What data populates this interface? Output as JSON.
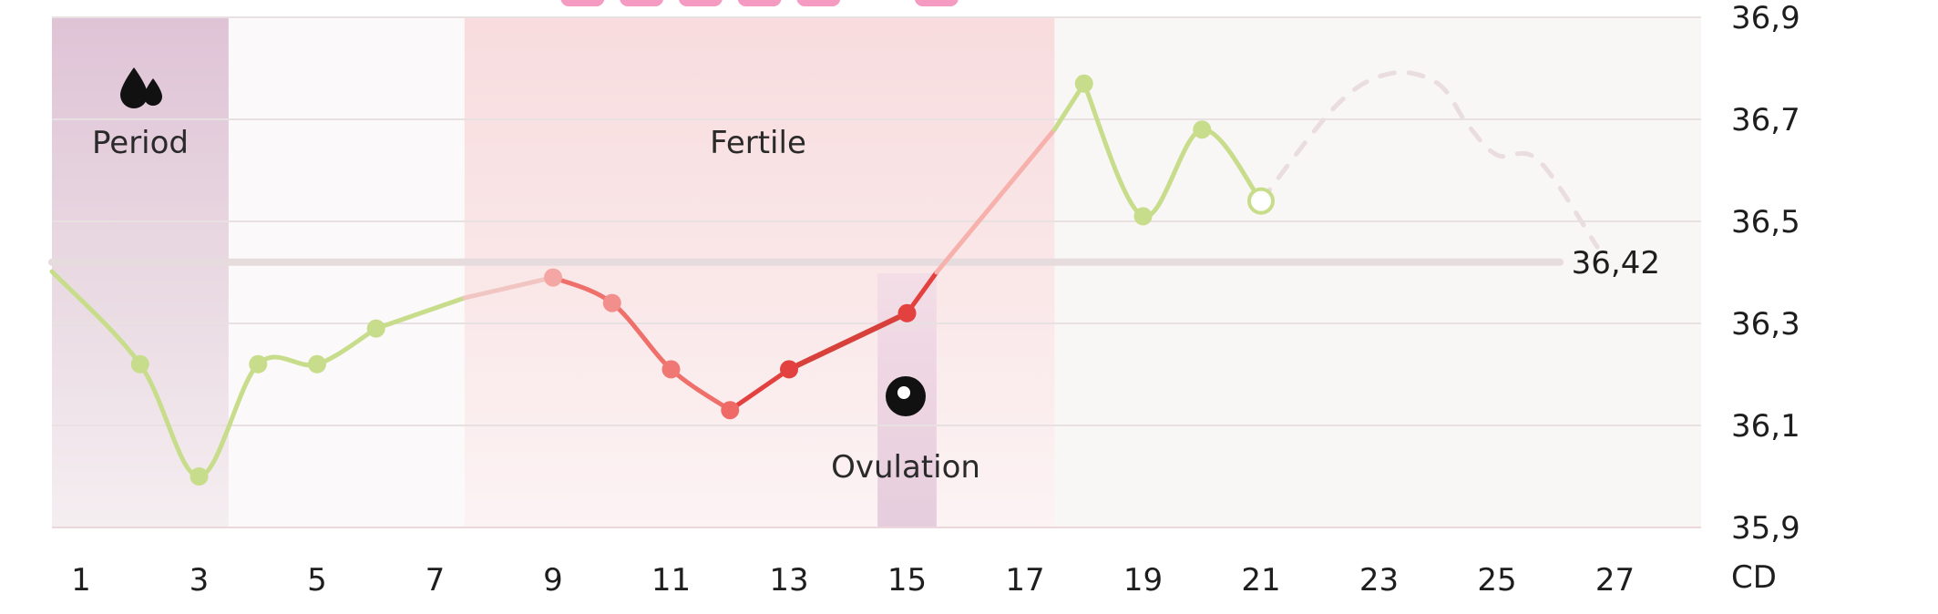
{
  "chart_data": {
    "type": "line",
    "x_unit_label": "CD",
    "xlim": [
      1,
      28
    ],
    "ylim": [
      35.9,
      36.9
    ],
    "x_ticks": [
      "1",
      "3",
      "5",
      "7",
      "9",
      "11",
      "13",
      "15",
      "17",
      "19",
      "21",
      "23",
      "25",
      "27"
    ],
    "y_ticks": [
      "36,9",
      "36,7",
      "36,5",
      "36,3",
      "36,1",
      "35,9"
    ],
    "series": [
      {
        "kind": "measured",
        "points": [
          {
            "x": 2,
            "y": 36.22
          },
          {
            "x": 3,
            "y": 36.0
          },
          {
            "x": 4,
            "y": 36.22
          },
          {
            "x": 5,
            "y": 36.22
          },
          {
            "x": 6,
            "y": 36.29
          },
          {
            "x": 9,
            "y": 36.39
          },
          {
            "x": 10,
            "y": 36.34
          },
          {
            "x": 11,
            "y": 36.21
          },
          {
            "x": 12,
            "y": 36.13
          },
          {
            "x": 13,
            "y": 36.21
          },
          {
            "x": 15,
            "y": 36.32
          },
          {
            "x": 18,
            "y": 36.77
          },
          {
            "x": 19,
            "y": 36.51
          },
          {
            "x": 20,
            "y": 36.68
          },
          {
            "x": 21,
            "y": 36.54
          }
        ]
      },
      {
        "kind": "predicted",
        "points": [
          {
            "x": 21,
            "y": 36.54
          },
          {
            "x": 22.3,
            "y": 36.73
          },
          {
            "x": 23.2,
            "y": 36.79
          },
          {
            "x": 24,
            "y": 36.77
          },
          {
            "x": 24.5,
            "y": 36.69
          },
          {
            "x": 25,
            "y": 36.63
          },
          {
            "x": 25.7,
            "y": 36.62
          },
          {
            "x": 26.7,
            "y": 36.45
          }
        ]
      }
    ],
    "average": {
      "value": 36.42,
      "label": "36,42"
    },
    "bands": [
      {
        "name": "period",
        "label": "Period",
        "from": 0.5,
        "to": 3.5,
        "color": "#dfc3d6",
        "icon": "blood-drops-icon"
      },
      {
        "name": "fertile",
        "label": "Fertile",
        "from": 7.5,
        "to": 17.5,
        "color": "#f8dcde"
      },
      {
        "name": "ovulation",
        "label": "Ovulation",
        "from": 14.5,
        "to": 15.5,
        "color": "#e8cede",
        "icon": "egg-cell-icon"
      }
    ],
    "colors": {
      "normal": "#c8dd8b",
      "fertile_low": "#f4a6a5",
      "fertile_mid": "#ef6f6b",
      "fertile_high": "#e2413f",
      "rise": "#f7b1ad",
      "predicted": "#eadddf",
      "grid": "#e8e0e1",
      "average_line": "#e6dcdd"
    }
  }
}
